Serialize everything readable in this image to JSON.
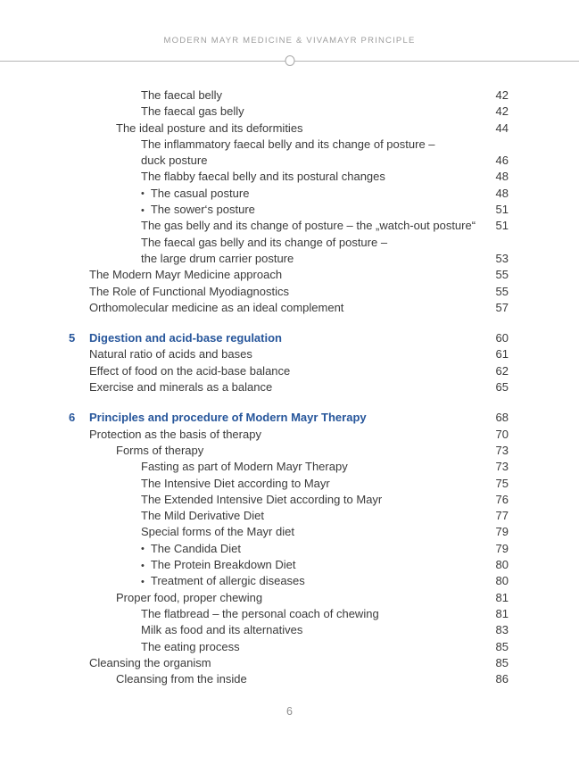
{
  "page": {
    "header": "MODERN MAYR MEDICINE & VIVAMAYR PRINCIPLE",
    "footer_page_number": "6",
    "colors": {
      "accent_blue": "#27569b",
      "body_text": "#3a3a3a",
      "header_gray": "#9c9c9c",
      "rule_gray": "#b5b5b5"
    }
  },
  "toc": {
    "bullet_glyph": "•",
    "entries": [
      {
        "level": 3,
        "text": "The faecal belly",
        "page": "42"
      },
      {
        "level": 3,
        "text": "The faecal gas belly",
        "page": "42"
      },
      {
        "level": 2,
        "text": "The ideal posture and its deformities",
        "page": "44"
      },
      {
        "level": 3,
        "text": "The inflammatory faecal belly and its change of posture –",
        "page": ""
      },
      {
        "level": 3,
        "text": "duck posture",
        "page": "46"
      },
      {
        "level": 3,
        "text": "The flabby faecal belly and its postural changes",
        "page": "48"
      },
      {
        "level": "bullet",
        "text": "The casual posture",
        "page": "48"
      },
      {
        "level": "bullet",
        "text": "The sower‘s posture",
        "page": "51"
      },
      {
        "level": 3,
        "text": "The gas belly and its change of posture – the „watch-out posture“",
        "page": "51"
      },
      {
        "level": 3,
        "text": "The faecal gas belly and its change of posture –",
        "page": ""
      },
      {
        "level": 3,
        "text": "the large drum carrier posture",
        "page": "53"
      },
      {
        "level": 1,
        "text": "The Modern Mayr Medicine approach",
        "page": "55"
      },
      {
        "level": 1,
        "text": "The Role of Functional Myodiagnostics",
        "page": "55"
      },
      {
        "level": 1,
        "text": "Orthomolecular medicine as an ideal complement",
        "page": "57"
      },
      {
        "gap": true
      },
      {
        "level": "section",
        "number": "5",
        "text": "Digestion and acid-base regulation",
        "page": "60"
      },
      {
        "level": 1,
        "text": "Natural ratio of acids and bases",
        "page": "61"
      },
      {
        "level": 1,
        "text": "Effect of food on the acid-base balance",
        "page": "62"
      },
      {
        "level": 1,
        "text": "Exercise and minerals as a balance",
        "page": "65"
      },
      {
        "gap": true
      },
      {
        "level": "section",
        "number": "6",
        "text": "Principles and procedure of Modern Mayr Therapy",
        "page": "68"
      },
      {
        "level": 1,
        "text": "Protection as the basis of therapy",
        "page": "70"
      },
      {
        "level": 2,
        "text": "Forms of therapy",
        "page": "73"
      },
      {
        "level": 3,
        "text": "Fasting as part of Modern Mayr Therapy",
        "page": "73"
      },
      {
        "level": 3,
        "text": "The Intensive Diet according to Mayr",
        "page": "75"
      },
      {
        "level": 3,
        "text": "The Extended Intensive Diet according to Mayr",
        "page": "76"
      },
      {
        "level": 3,
        "text": "The Mild Derivative Diet",
        "page": "77"
      },
      {
        "level": 3,
        "text": "Special forms of the Mayr diet",
        "page": "79"
      },
      {
        "level": "bullet",
        "text": "The Candida Diet",
        "page": "79"
      },
      {
        "level": "bullet",
        "text": "The Protein Breakdown Diet",
        "page": "80"
      },
      {
        "level": "bullet",
        "text": "Treatment of allergic diseases",
        "page": "80"
      },
      {
        "level": 2,
        "text": "Proper food, proper chewing",
        "page": "81"
      },
      {
        "level": 3,
        "text": "The flatbread – the personal coach of chewing",
        "page": "81"
      },
      {
        "level": 3,
        "text": "Milk as food and its alternatives",
        "page": "83"
      },
      {
        "level": 3,
        "text": "The eating process",
        "page": "85"
      },
      {
        "level": 1,
        "text": "Cleansing the organism",
        "page": "85"
      },
      {
        "level": 2,
        "text": "Cleansing from the inside",
        "page": "86"
      }
    ]
  }
}
